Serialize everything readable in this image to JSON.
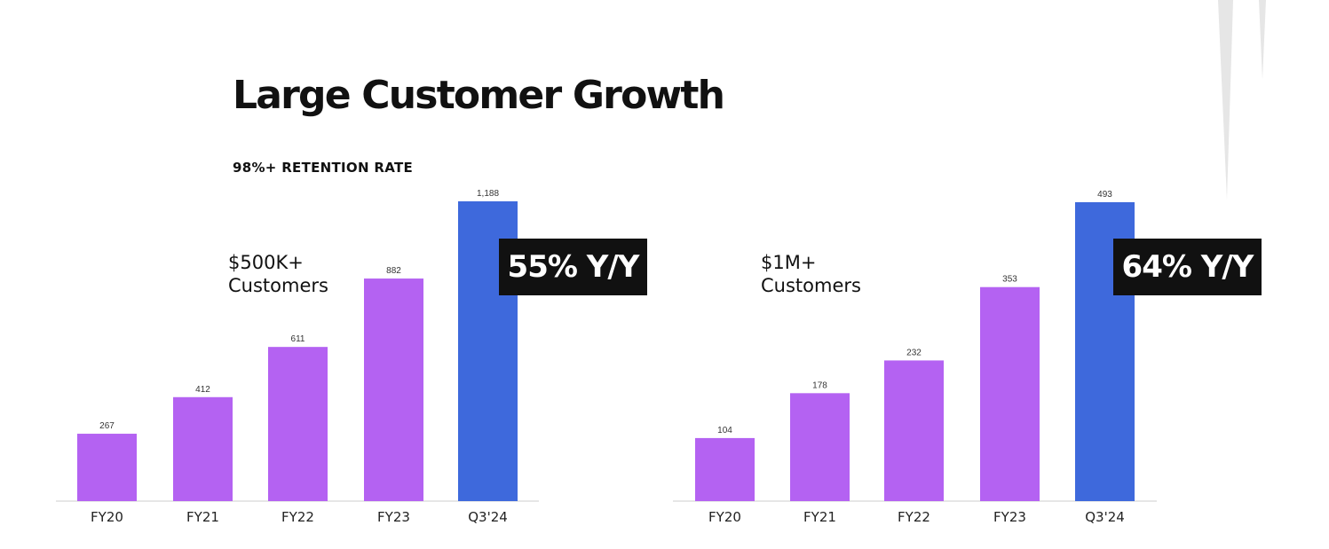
{
  "title": "Large Customer Growth",
  "subtitle": "98%+ RETENTION RATE",
  "colors": {
    "bar": "#b462f2",
    "highlight_bar": "#3e69dc",
    "badge_bg": "#111111",
    "axis": "#cccccc"
  },
  "charts": [
    {
      "label_line1": "$500K+",
      "label_line2": "Customers",
      "badge": "55% Y/Y"
    },
    {
      "label_line1": "$1M+",
      "label_line2": "Customers",
      "badge": "64% Y/Y"
    }
  ],
  "chart_data": [
    {
      "type": "bar",
      "categories": [
        "FY20",
        "FY21",
        "FY22",
        "FY23",
        "Q3'24"
      ],
      "values": [
        267,
        412,
        611,
        882,
        1188
      ],
      "value_labels": [
        "267",
        "412",
        "611",
        "882",
        "1,188"
      ],
      "highlight_index": 4,
      "title": "$500K+ Customers",
      "ylim": [
        0,
        1188
      ]
    },
    {
      "type": "bar",
      "categories": [
        "FY20",
        "FY21",
        "FY22",
        "FY23",
        "Q3'24"
      ],
      "values": [
        104,
        178,
        232,
        353,
        493
      ],
      "value_labels": [
        "104",
        "178",
        "232",
        "353",
        "493"
      ],
      "highlight_index": 4,
      "title": "$1M+ Customers",
      "ylim": [
        0,
        493
      ]
    }
  ]
}
